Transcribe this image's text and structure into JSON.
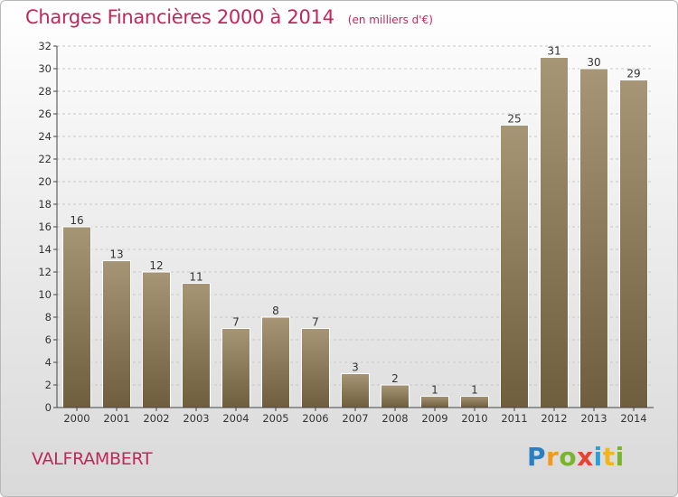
{
  "title": "Charges Financières 2000 à 2014",
  "unit_note": "(en milliers d'€)",
  "city": "VALFRAMBERT",
  "logo": {
    "letters": [
      {
        "ch": "P",
        "color": "#2b7fc0"
      },
      {
        "ch": "r",
        "color": "#f29a1d"
      },
      {
        "ch": "o",
        "color": "#7ab42d"
      },
      {
        "ch": "x",
        "color": "#e8432e"
      },
      {
        "ch": "i",
        "color": "#2b9fd8"
      },
      {
        "ch": "t",
        "color": "#f2b51d"
      },
      {
        "ch": "i",
        "color": "#7ab42d"
      }
    ]
  },
  "colors": {
    "title": "#c0285a",
    "bar_top": "#a69676",
    "bar_bottom": "#6f5e3e"
  },
  "chart_data": {
    "type": "bar",
    "title": "Charges Financières 2000 à 2014",
    "subtitle": "(en milliers d'€)",
    "categories": [
      "2000",
      "2001",
      "2002",
      "2003",
      "2004",
      "2005",
      "2006",
      "2007",
      "2008",
      "2009",
      "2010",
      "2011",
      "2012",
      "2013",
      "2014"
    ],
    "values": [
      16,
      13,
      12,
      11,
      7,
      8,
      7,
      3,
      2,
      1,
      1,
      25,
      31,
      30,
      29
    ],
    "ylim": [
      0,
      32
    ],
    "yticks": [
      0,
      2,
      4,
      6,
      8,
      10,
      12,
      14,
      16,
      18,
      20,
      22,
      24,
      26,
      28,
      30,
      32
    ],
    "grid": true
  }
}
